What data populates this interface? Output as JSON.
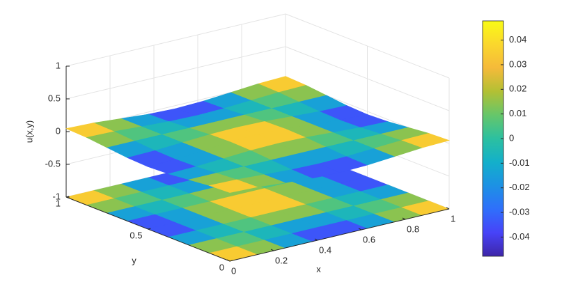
{
  "chart_data": {
    "type": "surface",
    "x": [
      0,
      0.125,
      0.25,
      0.375,
      0.5,
      0.625,
      0.75,
      0.875,
      1
    ],
    "y": [
      0,
      0.125,
      0.25,
      0.375,
      0.5,
      0.625,
      0.75,
      0.875,
      1
    ],
    "z": [
      [
        0.047,
        0.0332,
        0,
        -0.0332,
        -0.047,
        -0.0332,
        0,
        0.0332,
        0.047
      ],
      [
        0.0332,
        0.0235,
        0,
        -0.0235,
        -0.0332,
        -0.0235,
        0,
        0.0235,
        0.0332
      ],
      [
        0,
        0,
        0,
        0,
        0,
        0,
        0,
        0,
        0
      ],
      [
        -0.0332,
        -0.0235,
        0,
        0.0235,
        0.0332,
        0.0235,
        0,
        -0.0235,
        -0.0332
      ],
      [
        -0.047,
        -0.0332,
        0,
        0.0332,
        0.047,
        0.0332,
        0,
        -0.0332,
        -0.047
      ],
      [
        -0.0332,
        -0.0235,
        0,
        0.0235,
        0.0332,
        0.0235,
        0,
        -0.0235,
        -0.0332
      ],
      [
        0,
        0,
        0,
        0,
        0,
        0,
        0,
        0,
        0
      ],
      [
        0.0332,
        0.0235,
        0,
        -0.0235,
        -0.0332,
        -0.0235,
        0,
        0.0235,
        0.0332
      ],
      [
        0.047,
        0.0332,
        0,
        -0.0332,
        -0.047,
        -0.0332,
        0,
        0.0332,
        0.047
      ]
    ],
    "xlim": [
      0,
      1
    ],
    "ylim": [
      0,
      1
    ],
    "zlim": [
      -1,
      1
    ],
    "xticks": [
      0,
      0.2,
      0.4,
      0.6,
      0.8,
      1
    ],
    "yticks": [
      0,
      0.5,
      1
    ],
    "zticks": [
      -1,
      -0.5,
      0,
      0.5,
      1
    ],
    "xlabel": "x",
    "ylabel": "y",
    "zlabel": "u(x,y)",
    "grid": true,
    "floor_projection": true,
    "colormap": [
      "#3e26a8",
      "#4743f8",
      "#2f6ffb",
      "#1d91e4",
      "#13b0ca",
      "#2cc0a0",
      "#66c66a",
      "#b2c034",
      "#f5ba3a",
      "#fad72d",
      "#f9fb15"
    ],
    "colorbar": {
      "clim": [
        -0.0478,
        0.0478
      ],
      "ticks": [
        -0.04,
        -0.03,
        -0.02,
        -0.01,
        0,
        0.01,
        0.02,
        0.03,
        0.04
      ]
    }
  }
}
